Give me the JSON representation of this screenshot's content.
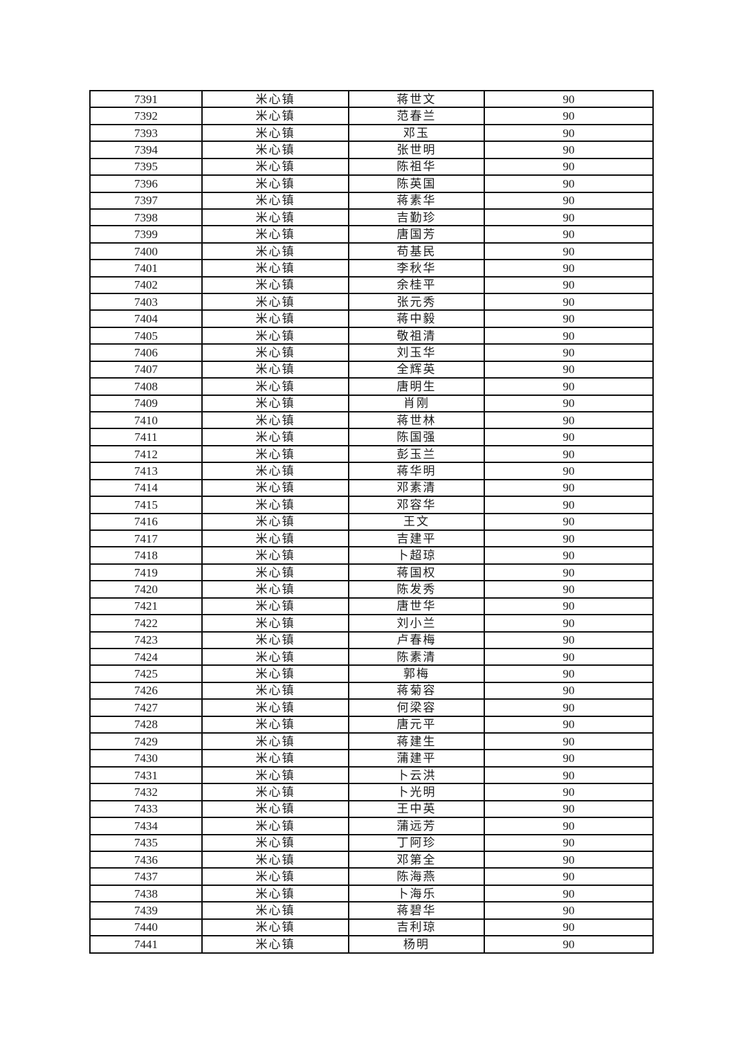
{
  "page": {
    "background_color": "#ffffff",
    "text_color": "#1a1a1a",
    "table_border_color": "#101010"
  },
  "table": {
    "rows": [
      [
        "7391",
        "米心镇",
        "蒋世文",
        "90"
      ],
      [
        "7392",
        "米心镇",
        "范春兰",
        "90"
      ],
      [
        "7393",
        "米心镇",
        "邓玉",
        "90"
      ],
      [
        "7394",
        "米心镇",
        "张世明",
        "90"
      ],
      [
        "7395",
        "米心镇",
        "陈祖华",
        "90"
      ],
      [
        "7396",
        "米心镇",
        "陈英国",
        "90"
      ],
      [
        "7397",
        "米心镇",
        "蒋素华",
        "90"
      ],
      [
        "7398",
        "米心镇",
        "吉勤珍",
        "90"
      ],
      [
        "7399",
        "米心镇",
        "唐国芳",
        "90"
      ],
      [
        "7400",
        "米心镇",
        "苟基民",
        "90"
      ],
      [
        "7401",
        "米心镇",
        "李秋华",
        "90"
      ],
      [
        "7402",
        "米心镇",
        "余桂平",
        "90"
      ],
      [
        "7403",
        "米心镇",
        "张元秀",
        "90"
      ],
      [
        "7404",
        "米心镇",
        "蒋中毅",
        "90"
      ],
      [
        "7405",
        "米心镇",
        "敬祖清",
        "90"
      ],
      [
        "7406",
        "米心镇",
        "刘玉华",
        "90"
      ],
      [
        "7407",
        "米心镇",
        "全辉英",
        "90"
      ],
      [
        "7408",
        "米心镇",
        "唐明生",
        "90"
      ],
      [
        "7409",
        "米心镇",
        "肖刚",
        "90"
      ],
      [
        "7410",
        "米心镇",
        "蒋世林",
        "90"
      ],
      [
        "7411",
        "米心镇",
        "陈国强",
        "90"
      ],
      [
        "7412",
        "米心镇",
        "彭玉兰",
        "90"
      ],
      [
        "7413",
        "米心镇",
        "蒋华明",
        "90"
      ],
      [
        "7414",
        "米心镇",
        "邓素清",
        "90"
      ],
      [
        "7415",
        "米心镇",
        "邓容华",
        "90"
      ],
      [
        "7416",
        "米心镇",
        "王文",
        "90"
      ],
      [
        "7417",
        "米心镇",
        "吉建平",
        "90"
      ],
      [
        "7418",
        "米心镇",
        "卜超琼",
        "90"
      ],
      [
        "7419",
        "米心镇",
        "蒋国权",
        "90"
      ],
      [
        "7420",
        "米心镇",
        "陈发秀",
        "90"
      ],
      [
        "7421",
        "米心镇",
        "唐世华",
        "90"
      ],
      [
        "7422",
        "米心镇",
        "刘小兰",
        "90"
      ],
      [
        "7423",
        "米心镇",
        "卢春梅",
        "90"
      ],
      [
        "7424",
        "米心镇",
        "陈素清",
        "90"
      ],
      [
        "7425",
        "米心镇",
        "郭梅",
        "90"
      ],
      [
        "7426",
        "米心镇",
        "蒋菊容",
        "90"
      ],
      [
        "7427",
        "米心镇",
        "何梁容",
        "90"
      ],
      [
        "7428",
        "米心镇",
        "唐元平",
        "90"
      ],
      [
        "7429",
        "米心镇",
        "蒋建生",
        "90"
      ],
      [
        "7430",
        "米心镇",
        "蒲建平",
        "90"
      ],
      [
        "7431",
        "米心镇",
        "卜云洪",
        "90"
      ],
      [
        "7432",
        "米心镇",
        "卜光明",
        "90"
      ],
      [
        "7433",
        "米心镇",
        "王中英",
        "90"
      ],
      [
        "7434",
        "米心镇",
        "蒲远芳",
        "90"
      ],
      [
        "7435",
        "米心镇",
        "丁阿珍",
        "90"
      ],
      [
        "7436",
        "米心镇",
        "邓第全",
        "90"
      ],
      [
        "7437",
        "米心镇",
        "陈海燕",
        "90"
      ],
      [
        "7438",
        "米心镇",
        "卜海乐",
        "90"
      ],
      [
        "7439",
        "米心镇",
        "蒋碧华",
        "90"
      ],
      [
        "7440",
        "米心镇",
        "吉利琼",
        "90"
      ],
      [
        "7441",
        "米心镇",
        "杨明",
        "90"
      ]
    ]
  }
}
